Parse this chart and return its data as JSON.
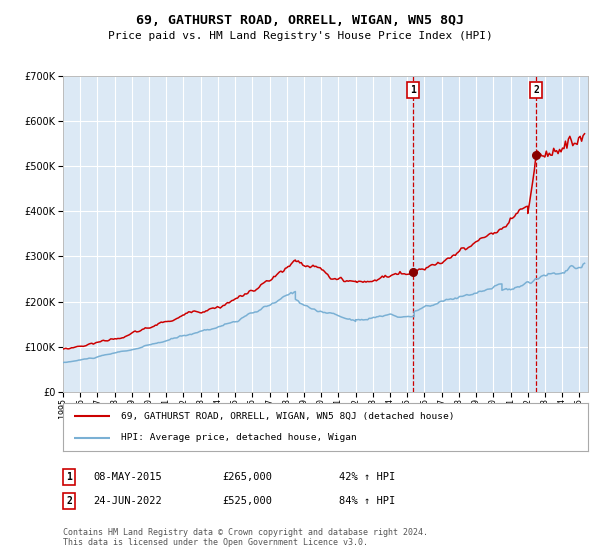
{
  "title": "69, GATHURST ROAD, ORRELL, WIGAN, WN5 8QJ",
  "subtitle": "Price paid vs. HM Land Registry's House Price Index (HPI)",
  "title_fontsize": 9.5,
  "subtitle_fontsize": 8,
  "background_color": "#ffffff",
  "plot_bg_color": "#dce9f5",
  "grid_color": "#ffffff",
  "ylim": [
    0,
    700000
  ],
  "xlim_start": 1995.0,
  "xlim_end": 2025.5,
  "yticks": [
    0,
    100000,
    200000,
    300000,
    400000,
    500000,
    600000,
    700000
  ],
  "ytick_labels": [
    "£0",
    "£100K",
    "£200K",
    "£300K",
    "£400K",
    "£500K",
    "£600K",
    "£700K"
  ],
  "xticks": [
    1995,
    1996,
    1997,
    1998,
    1999,
    2000,
    2001,
    2002,
    2003,
    2004,
    2005,
    2006,
    2007,
    2008,
    2009,
    2010,
    2011,
    2012,
    2013,
    2014,
    2015,
    2016,
    2017,
    2018,
    2019,
    2020,
    2021,
    2022,
    2023,
    2024,
    2025
  ],
  "sale1_x": 2015.35,
  "sale1_y": 265000,
  "sale1_label": "1",
  "sale1_date": "08-MAY-2015",
  "sale1_price": "£265,000",
  "sale1_hpi": "42% ↑ HPI",
  "sale2_x": 2022.48,
  "sale2_y": 525000,
  "sale2_label": "2",
  "sale2_date": "24-JUN-2022",
  "sale2_price": "£525,000",
  "sale2_hpi": "84% ↑ HPI",
  "red_line_color": "#cc0000",
  "blue_line_color": "#7ab0d4",
  "marker_color": "#880000",
  "vline_color": "#cc0000",
  "legend_label_red": "69, GATHURST ROAD, ORRELL, WIGAN, WN5 8QJ (detached house)",
  "legend_label_blue": "HPI: Average price, detached house, Wigan",
  "footer": "Contains HM Land Registry data © Crown copyright and database right 2024.\nThis data is licensed under the Open Government Licence v3.0.",
  "footer_fontsize": 6.0
}
